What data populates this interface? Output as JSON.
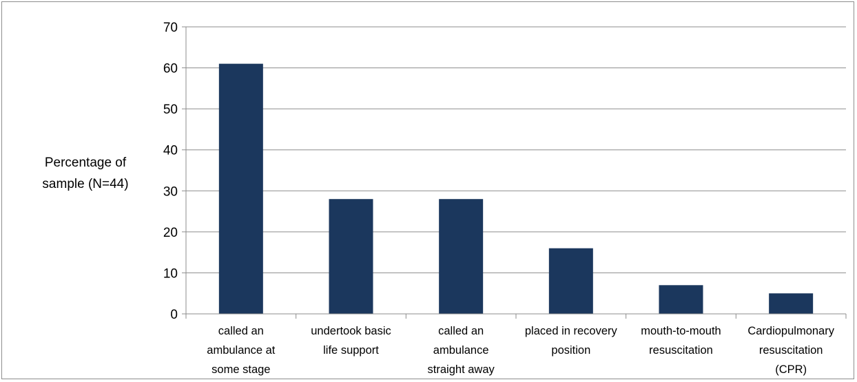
{
  "chart_data": {
    "type": "bar",
    "title": "",
    "xlabel": "",
    "ylabel": [
      "Percentage of",
      "sample (N=44)"
    ],
    "categories": [
      [
        "called an",
        "ambulance at",
        "some stage"
      ],
      [
        "undertook basic",
        "life support"
      ],
      [
        "called an",
        "ambulance",
        "straight away"
      ],
      [
        "placed in recovery",
        "position"
      ],
      [
        "mouth-to-mouth",
        "resuscitation"
      ],
      [
        "Cardiopulmonary",
        "resuscitation",
        "(CPR)"
      ]
    ],
    "values": [
      61,
      28,
      28,
      16,
      7,
      5
    ],
    "ylim": [
      0,
      70
    ],
    "yticks": [
      0,
      10,
      20,
      30,
      40,
      50,
      60,
      70
    ],
    "grid": true,
    "legend": "none",
    "colors": {
      "bar": "#1b375d",
      "grid": "#8c8c8c",
      "axis": "#8c8c8c"
    }
  }
}
